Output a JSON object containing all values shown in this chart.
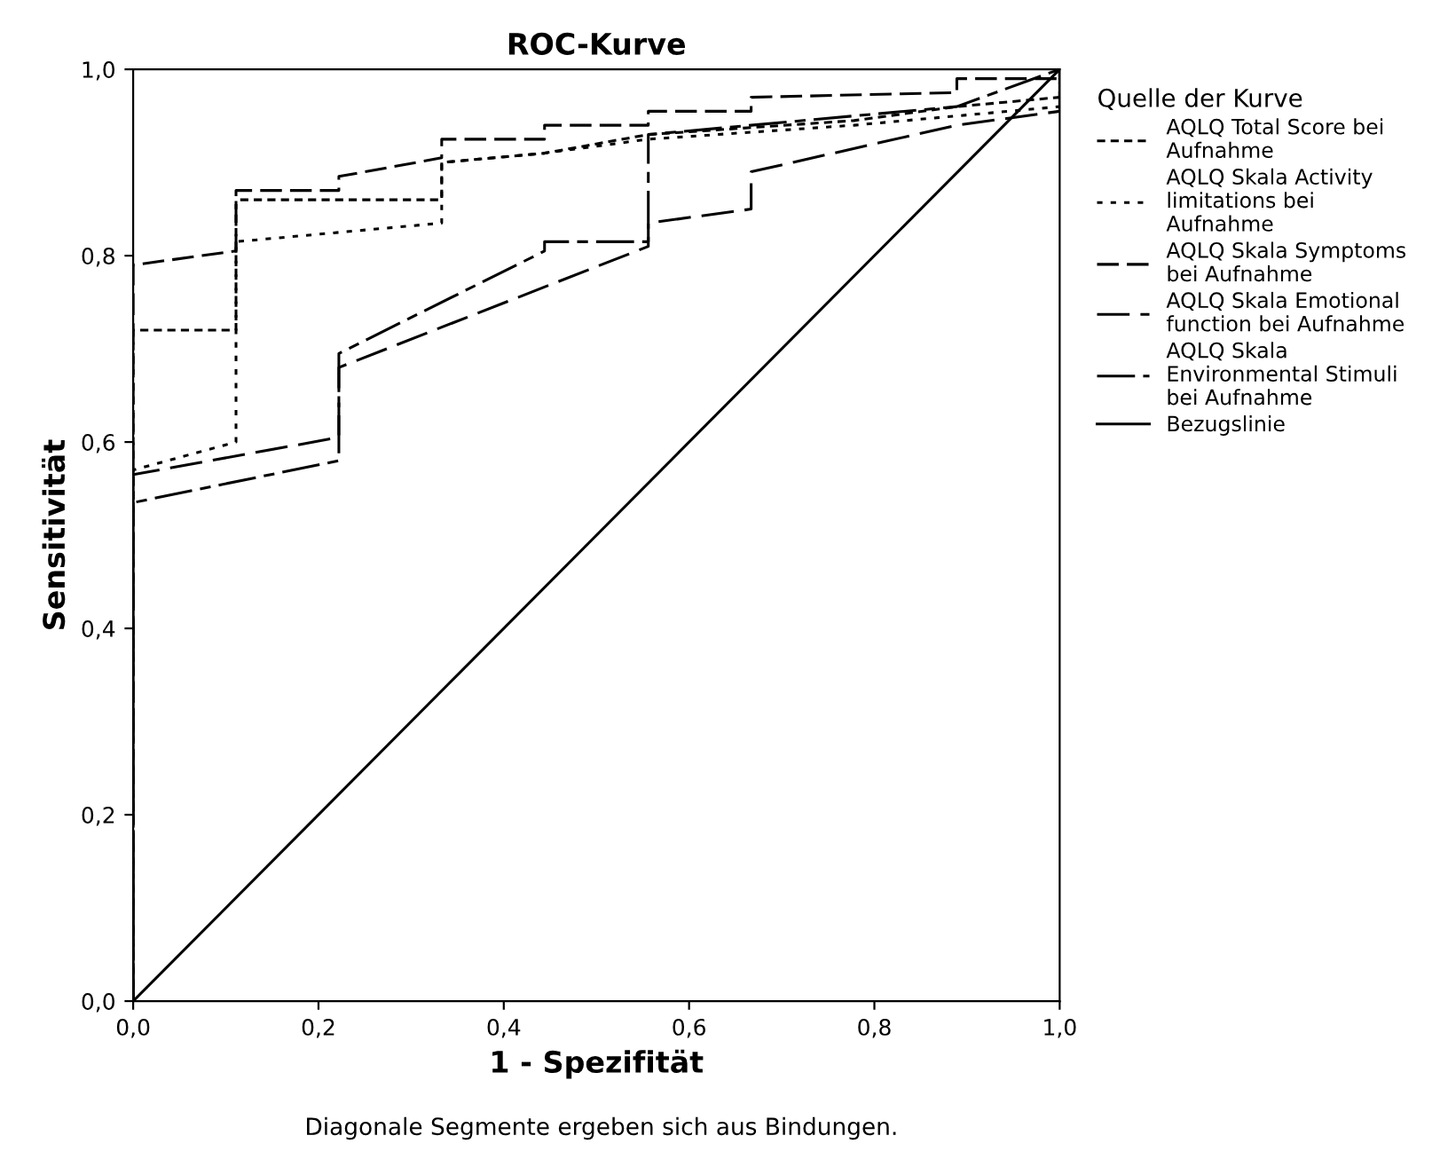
{
  "chart_data": {
    "type": "line",
    "title": "ROC-Kurve",
    "xlabel": "1 - Spezifität",
    "ylabel": "Sensitivität",
    "legend_title": "Quelle der Kurve",
    "legend": "right",
    "grid": false,
    "xlim": [
      0,
      1
    ],
    "ylim": [
      0,
      1
    ],
    "xticks": [
      {
        "value": 0,
        "label": "0,0"
      },
      {
        "value": 0.2,
        "label": "0,2"
      },
      {
        "value": 0.4,
        "label": "0,4"
      },
      {
        "value": 0.6,
        "label": "0,6"
      },
      {
        "value": 0.8,
        "label": "0,8"
      },
      {
        "value": 1,
        "label": "1,0"
      }
    ],
    "yticks": [
      {
        "value": 0,
        "label": "0,0"
      },
      {
        "value": 0.2,
        "label": "0,2"
      },
      {
        "value": 0.4,
        "label": "0,4"
      },
      {
        "value": 0.6,
        "label": "0,6"
      },
      {
        "value": 0.8,
        "label": "0,8"
      },
      {
        "value": 1,
        "label": "1,0"
      }
    ],
    "series": [
      {
        "name": "AQLQ Total Score bei Aufnahme",
        "color": "#000000",
        "line_style": "dotted",
        "x": [
          0,
          0,
          0.111,
          0.111,
          0.333,
          0.333,
          0.444,
          0.556,
          0.778,
          0.889,
          1,
          1
        ],
        "values": [
          0,
          0.72,
          0.72,
          0.86,
          0.86,
          0.9,
          0.91,
          0.93,
          0.945,
          0.96,
          0.97,
          1
        ]
      },
      {
        "name": "AQLQ Skala Activity limitations bei Aufnahme",
        "color": "#000000",
        "line_style": "dotted",
        "x": [
          0,
          0,
          0.111,
          0.111,
          0.333,
          0.333,
          0.444,
          0.556,
          0.778,
          0.889,
          1,
          1
        ],
        "values": [
          0,
          0.57,
          0.6,
          0.815,
          0.835,
          0.9,
          0.91,
          0.925,
          0.94,
          0.95,
          0.96,
          1
        ]
      },
      {
        "name": "AQLQ Skala Symptoms bei Aufnahme",
        "color": "#000000",
        "line_style": "dashed",
        "x": [
          0,
          0,
          0.111,
          0.111,
          0.222,
          0.222,
          0.333,
          0.333,
          0.444,
          0.444,
          0.556,
          0.556,
          0.667,
          0.667,
          0.889,
          0.889,
          1,
          1
        ],
        "values": [
          0,
          0.79,
          0.805,
          0.87,
          0.87,
          0.885,
          0.905,
          0.925,
          0.925,
          0.94,
          0.94,
          0.955,
          0.955,
          0.97,
          0.975,
          0.99,
          0.99,
          1
        ]
      },
      {
        "name": "AQLQ Skala Emotional function bei Aufnahme",
        "color": "#000000",
        "line_style": "dashed",
        "x": [
          0,
          0,
          0.222,
          0.222,
          0.556,
          0.556,
          0.667,
          0.667,
          0.889,
          1,
          1
        ],
        "values": [
          0,
          0.565,
          0.605,
          0.68,
          0.81,
          0.835,
          0.85,
          0.89,
          0.94,
          0.955,
          1
        ]
      },
      {
        "name": "AQLQ Skala Environmental Stimuli bei Aufnahme",
        "color": "#000000",
        "line_style": "dashed",
        "x": [
          0,
          0,
          0.222,
          0.222,
          0.444,
          0.444,
          0.556,
          0.556,
          0.667,
          0.778,
          0.889,
          1
        ],
        "values": [
          0,
          0.535,
          0.58,
          0.695,
          0.805,
          0.815,
          0.815,
          0.93,
          0.94,
          0.95,
          0.96,
          1
        ]
      },
      {
        "name": "Bezugslinie",
        "color": "#000000",
        "line_style": "solid",
        "x": [
          0,
          1
        ],
        "values": [
          0,
          1
        ]
      }
    ],
    "annotations": [
      "Diagonale Segmente ergeben sich aus Bindungen."
    ]
  }
}
